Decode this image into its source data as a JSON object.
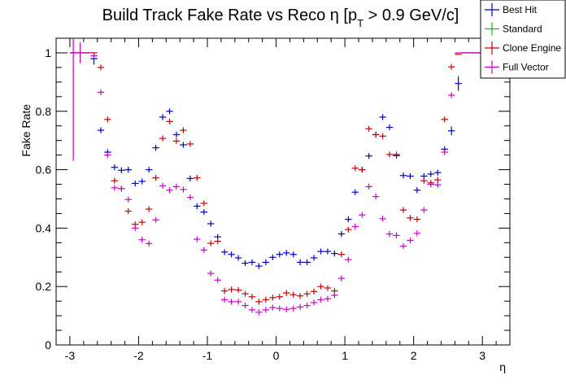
{
  "chart_data": {
    "type": "scatter",
    "title": "Build Track Fake Rate vs Reco η [p_T > 0.9 GeV/c]",
    "title_parts": {
      "main": "Build Track Fake Rate vs Reco η [p",
      "sub": "T",
      "rest": " > 0.9 GeV/c]"
    },
    "xlabel": "η",
    "ylabel": "Fake Rate",
    "xlim": [
      -3.2,
      3.4
    ],
    "ylim": [
      0,
      1.05
    ],
    "xticks": [
      -3,
      -2,
      -1,
      0,
      1,
      2,
      3
    ],
    "xtick_labels": [
      "-3",
      "-2",
      "-1",
      "0",
      "1",
      "2",
      "3"
    ],
    "yticks": [
      0,
      0.2,
      0.4,
      0.6,
      0.8,
      1
    ],
    "ytick_labels": [
      "0",
      "0.2",
      "0.4",
      "0.6",
      "0.8",
      "1"
    ],
    "legend_position": "top-right",
    "x": [
      -2.95,
      -2.85,
      -2.75,
      -2.65,
      -2.55,
      -2.45,
      -2.35,
      -2.25,
      -2.15,
      -2.05,
      -1.95,
      -1.85,
      -1.75,
      -1.65,
      -1.55,
      -1.45,
      -1.35,
      -1.25,
      -1.15,
      -1.05,
      -0.95,
      -0.85,
      -0.75,
      -0.65,
      -0.55,
      -0.45,
      -0.35,
      -0.25,
      -0.15,
      -0.05,
      0.05,
      0.15,
      0.25,
      0.35,
      0.45,
      0.55,
      0.65,
      0.75,
      0.85,
      0.95,
      1.05,
      1.15,
      1.25,
      1.35,
      1.45,
      1.55,
      1.65,
      1.75,
      1.85,
      1.95,
      2.05,
      2.15,
      2.25,
      2.35,
      2.45,
      2.55,
      2.65,
      2.75,
      2.85,
      2.95
    ],
    "series": [
      {
        "name": "Best Hit",
        "color": "#0000cc",
        "values": [
          1.0,
          1.0,
          1.0,
          0.98,
          0.735,
          0.66,
          0.608,
          0.598,
          0.6,
          0.553,
          0.56,
          0.6,
          0.675,
          0.78,
          0.8,
          0.72,
          0.685,
          0.57,
          0.475,
          0.455,
          0.415,
          0.37,
          0.318,
          0.31,
          0.298,
          0.28,
          0.283,
          0.27,
          0.283,
          0.3,
          0.31,
          0.315,
          0.31,
          0.283,
          0.283,
          0.298,
          0.32,
          0.32,
          0.313,
          0.38,
          0.43,
          0.523,
          0.6,
          0.647,
          0.72,
          0.78,
          0.745,
          0.648,
          0.58,
          0.578,
          0.53,
          0.578,
          0.585,
          0.59,
          0.67,
          0.733,
          0.895,
          1.0,
          1.0,
          1.0
        ],
        "errors": [
          0.0,
          0.0,
          0.0,
          0.02,
          0.01,
          0.01,
          0.01,
          0.01,
          0.01,
          0.01,
          0.01,
          0.01,
          0.01,
          0.01,
          0.01,
          0.01,
          0.01,
          0.01,
          0.01,
          0.01,
          0.01,
          0.01,
          0.01,
          0.01,
          0.01,
          0.01,
          0.01,
          0.01,
          0.01,
          0.01,
          0.01,
          0.01,
          0.01,
          0.01,
          0.01,
          0.01,
          0.01,
          0.01,
          0.01,
          0.01,
          0.01,
          0.01,
          0.01,
          0.01,
          0.01,
          0.01,
          0.01,
          0.01,
          0.01,
          0.01,
          0.01,
          0.01,
          0.01,
          0.01,
          0.01,
          0.015,
          0.025,
          0.0,
          0.0,
          0.0
        ]
      },
      {
        "name": "Standard",
        "color": "#00cc00",
        "values": [],
        "errors": []
      },
      {
        "name": "Clone Engine",
        "color": "#cc0000",
        "values": [
          1.0,
          1.0,
          1.0,
          1.0,
          0.95,
          0.772,
          0.562,
          0.535,
          0.458,
          0.413,
          0.42,
          0.465,
          0.572,
          0.707,
          0.765,
          0.698,
          0.735,
          0.688,
          0.572,
          0.485,
          0.348,
          0.355,
          0.185,
          0.19,
          0.188,
          0.175,
          0.165,
          0.148,
          0.155,
          0.162,
          0.165,
          0.178,
          0.172,
          0.168,
          0.175,
          0.183,
          0.2,
          0.195,
          0.185,
          0.31,
          0.395,
          0.605,
          0.6,
          0.74,
          0.72,
          0.715,
          0.652,
          0.652,
          0.462,
          0.435,
          0.43,
          0.562,
          0.555,
          0.565,
          0.772,
          0.952,
          0.995,
          1.0,
          1.0,
          1.0
        ],
        "errors": [
          0.0,
          0.0,
          0.0,
          0.0,
          0.01,
          0.01,
          0.01,
          0.01,
          0.01,
          0.01,
          0.01,
          0.01,
          0.01,
          0.01,
          0.01,
          0.01,
          0.01,
          0.01,
          0.01,
          0.01,
          0.01,
          0.01,
          0.01,
          0.01,
          0.01,
          0.01,
          0.01,
          0.01,
          0.01,
          0.01,
          0.01,
          0.01,
          0.01,
          0.01,
          0.01,
          0.01,
          0.01,
          0.01,
          0.01,
          0.01,
          0.01,
          0.01,
          0.01,
          0.01,
          0.01,
          0.01,
          0.01,
          0.01,
          0.01,
          0.01,
          0.01,
          0.01,
          0.01,
          0.01,
          0.01,
          0.01,
          0.0,
          0.0,
          0.0,
          0.0
        ]
      },
      {
        "name": "Full Vector",
        "color": "#cc00cc",
        "values": [
          1.0,
          1.0,
          1.0,
          0.99,
          0.865,
          0.65,
          0.538,
          0.535,
          0.498,
          0.4,
          0.36,
          0.347,
          0.428,
          0.545,
          0.53,
          0.542,
          0.532,
          0.505,
          0.362,
          0.325,
          0.245,
          0.222,
          0.155,
          0.148,
          0.148,
          0.135,
          0.12,
          0.112,
          0.12,
          0.128,
          0.125,
          0.122,
          0.125,
          0.13,
          0.135,
          0.145,
          0.155,
          0.158,
          0.17,
          0.228,
          0.292,
          0.405,
          0.445,
          0.542,
          0.508,
          0.432,
          0.38,
          0.375,
          0.338,
          0.358,
          0.382,
          0.462,
          0.55,
          0.548,
          0.66,
          0.855,
          1.0,
          1.0,
          1.0,
          1.0
        ],
        "errors": [
          0.37,
          0.035,
          0.0,
          0.01,
          0.01,
          0.01,
          0.01,
          0.01,
          0.01,
          0.01,
          0.01,
          0.01,
          0.01,
          0.01,
          0.01,
          0.01,
          0.01,
          0.01,
          0.01,
          0.01,
          0.01,
          0.01,
          0.01,
          0.01,
          0.01,
          0.01,
          0.01,
          0.01,
          0.01,
          0.01,
          0.01,
          0.01,
          0.01,
          0.01,
          0.01,
          0.01,
          0.01,
          0.01,
          0.01,
          0.01,
          0.01,
          0.01,
          0.01,
          0.01,
          0.01,
          0.01,
          0.01,
          0.01,
          0.01,
          0.01,
          0.01,
          0.01,
          0.01,
          0.01,
          0.01,
          0.01,
          0.0,
          0.0,
          0.0,
          0.0
        ]
      }
    ]
  }
}
